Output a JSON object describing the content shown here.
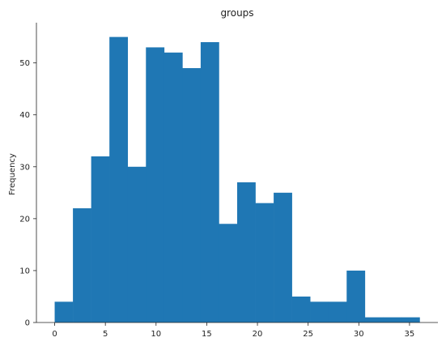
{
  "chart_data": {
    "type": "histogram",
    "title": "groups",
    "xlabel": "",
    "ylabel": "Frequency",
    "bin_edges": [
      0,
      1.8,
      3.6,
      5.4,
      7.2,
      9.0,
      10.8,
      12.6,
      14.4,
      16.2,
      18.0,
      19.8,
      21.6,
      23.4,
      25.2,
      27.0,
      28.8,
      30.6,
      32.4,
      34.2,
      36.0
    ],
    "counts": [
      4,
      22,
      32,
      55,
      30,
      53,
      52,
      49,
      54,
      19,
      27,
      23,
      25,
      5,
      4,
      4,
      10,
      1,
      1,
      1
    ],
    "xlim": [
      -1.8,
      37.8
    ],
    "ylim": [
      0,
      57.75
    ],
    "xticks": [
      0,
      5,
      10,
      15,
      20,
      25,
      30,
      35
    ],
    "yticks": [
      0,
      10,
      20,
      30,
      40,
      50
    ],
    "bar_color": "#1f77b4",
    "grid": false
  }
}
